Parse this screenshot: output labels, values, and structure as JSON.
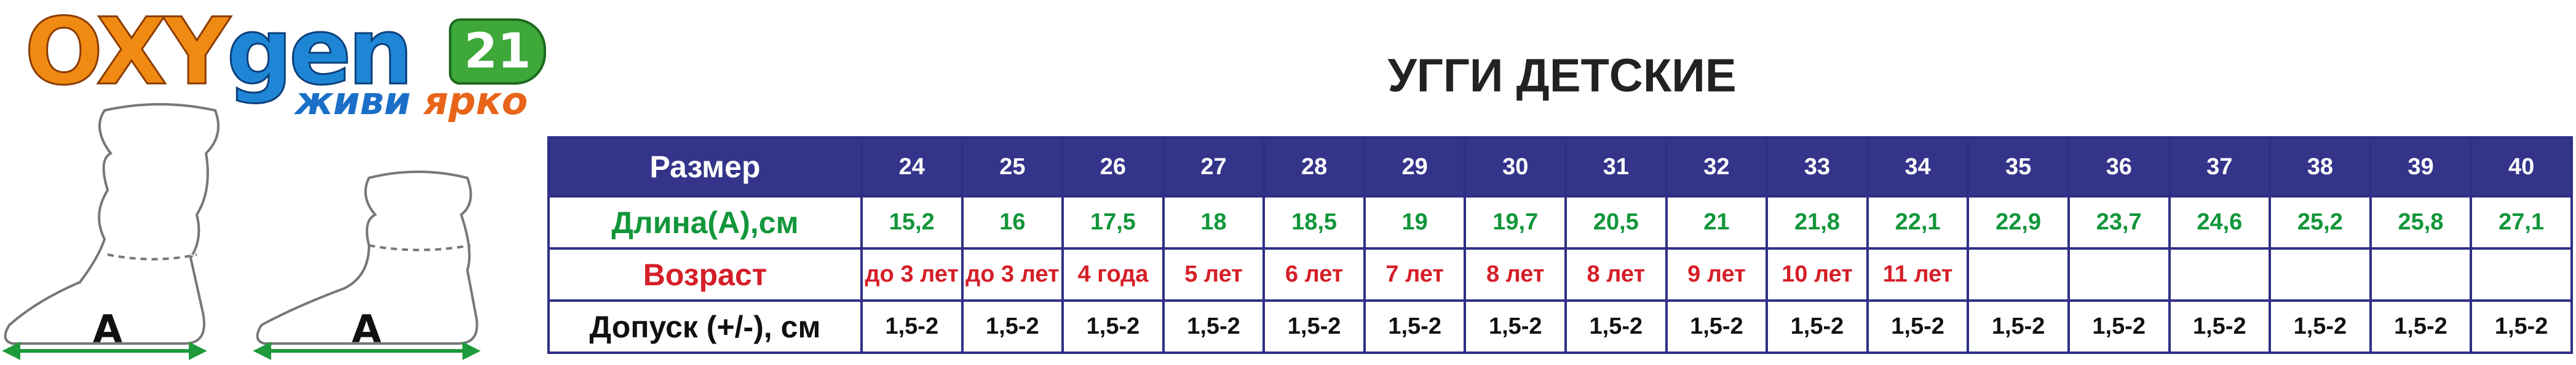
{
  "logo": {
    "brand_a": "OXY",
    "brand_b": "gen",
    "number": "21",
    "slogan_a": "живи",
    "slogan_b": "ярко"
  },
  "title": "УГГИ ДЕТСКИЕ",
  "figure_labels": [
    "А",
    "А"
  ],
  "table": {
    "header": [
      "Размер",
      "24",
      "25",
      "26",
      "27",
      "28",
      "29",
      "30",
      "31",
      "32",
      "33",
      "34",
      "35",
      "36",
      "37",
      "38",
      "39",
      "40"
    ],
    "rows": [
      [
        "Длина(А),см",
        "15,2",
        "16",
        "17,5",
        "18",
        "18,5",
        "19",
        "19,7",
        "20,5",
        "21",
        "21,8",
        "22,1",
        "22,9",
        "23,7",
        "24,6",
        "25,2",
        "25,8",
        "27,1"
      ],
      [
        "Возраст",
        "до 3 лет",
        "до 3 лет",
        "4 года",
        "5 лет",
        "6 лет",
        "7 лет",
        "8 лет",
        "8 лет",
        "9 лет",
        "10 лет",
        "11 лет"
      ],
      [
        "Допуск (+/-), см",
        "1,5-2",
        "1,5-2",
        "1,5-2",
        "1,5-2",
        "1,5-2",
        "1,5-2",
        "1,5-2",
        "1,5-2",
        "1,5-2",
        "1,5-2",
        "1,5-2",
        "1,5-2",
        "1,5-2",
        "1,5-2",
        "1,5-2",
        "1,5-2",
        "1,5-2"
      ]
    ]
  }
}
